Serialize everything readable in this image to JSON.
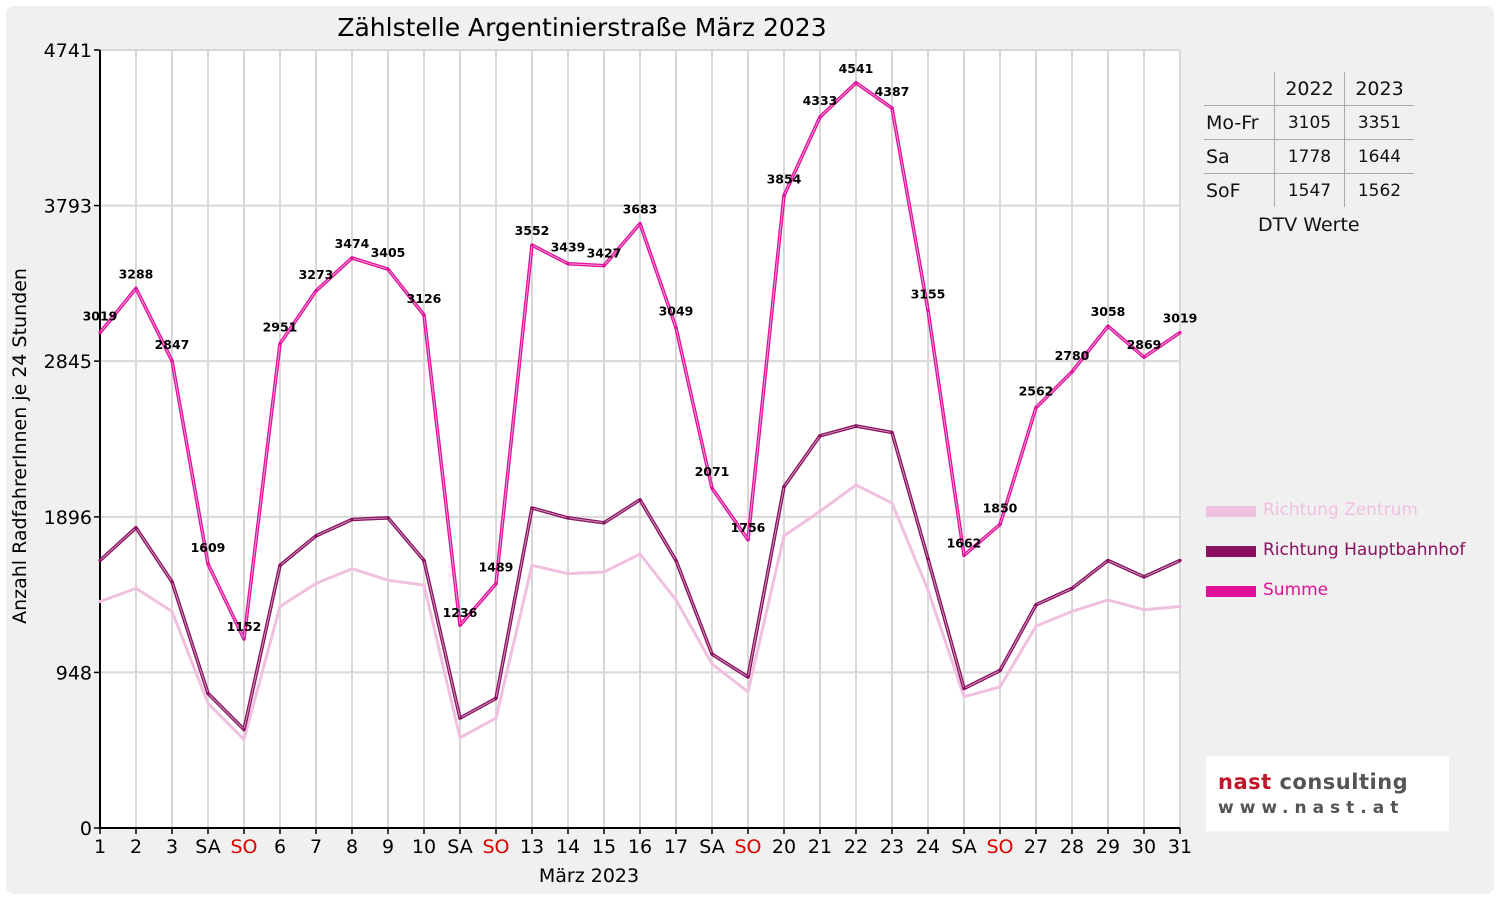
{
  "chart_data": {
    "type": "line",
    "title": "Zählstelle Argentinierstraße März 2023",
    "xlabel": "März 2023",
    "ylabel": "Anzahl RadfahrerInnen je 24 Stunden",
    "ylim": [
      0,
      4741
    ],
    "yticks": [
      0,
      948,
      1896,
      2845,
      3793,
      4741
    ],
    "grid": true,
    "legend_position": "right",
    "categories": [
      "1",
      "2",
      "3",
      "SA",
      "SO",
      "6",
      "7",
      "8",
      "9",
      "10",
      "SA",
      "SO",
      "13",
      "14",
      "15",
      "16",
      "17",
      "SA",
      "SO",
      "20",
      "21",
      "22",
      "23",
      "24",
      "SA",
      "SO",
      "27",
      "28",
      "29",
      "30",
      "31"
    ],
    "weekend_highlight": [
      4,
      11,
      18,
      25
    ],
    "series": [
      {
        "name": "Richtung Zentrum",
        "color": "#f0c0e0",
        "values": [
          1380,
          1460,
          1320,
          760,
          540,
          1350,
          1490,
          1580,
          1510,
          1480,
          550,
          670,
          1600,
          1550,
          1560,
          1670,
          1390,
          1000,
          830,
          1780,
          1930,
          2090,
          1980,
          1450,
          800,
          860,
          1230,
          1320,
          1390,
          1330,
          1350
        ]
      },
      {
        "name": "Richtung Hauptbahnhof",
        "color": "#8a1060",
        "values": [
          1630,
          1830,
          1500,
          820,
          600,
          1600,
          1780,
          1880,
          1890,
          1630,
          670,
          790,
          1950,
          1890,
          1860,
          2000,
          1630,
          1060,
          920,
          2080,
          2390,
          2450,
          2410,
          1640,
          850,
          960,
          1360,
          1460,
          1630,
          1530,
          1630
        ]
      },
      {
        "name": "Summe",
        "color": "#e0109a",
        "values": [
          3019,
          3288,
          2847,
          1609,
          1152,
          2951,
          3273,
          3474,
          3405,
          3126,
          1236,
          1489,
          3552,
          3439,
          3427,
          3683,
          3049,
          2071,
          1756,
          3854,
          4333,
          4541,
          4387,
          3155,
          1662,
          1850,
          2562,
          2780,
          3058,
          2869,
          3019
        ]
      }
    ],
    "data_labels": [
      "3019",
      "3288",
      "2847",
      "1609",
      "1152",
      "2951",
      "3273",
      "3474",
      "3405",
      "3126",
      "1236",
      "1489",
      "3552",
      "3439",
      "3427",
      "3683",
      "3049",
      "2071",
      "1756",
      "3854",
      "4333",
      "4541",
      "4387",
      "3155",
      "1662",
      "1850",
      "2562",
      "2780",
      "3058",
      "2869",
      "3019"
    ]
  },
  "dtv_table": {
    "headers": [
      "",
      "2022",
      "2023"
    ],
    "rows": [
      {
        "label": "Mo-Fr",
        "v2022": "3105",
        "v2023": "3351"
      },
      {
        "label": "Sa",
        "v2022": "1778",
        "v2023": "1644"
      },
      {
        "label": "SoF",
        "v2022": "1547",
        "v2023": "1562"
      }
    ],
    "caption": "DTV Werte"
  },
  "logo": {
    "brand": "nast",
    "rest": " consulting",
    "url_text": "www.nast.at"
  }
}
